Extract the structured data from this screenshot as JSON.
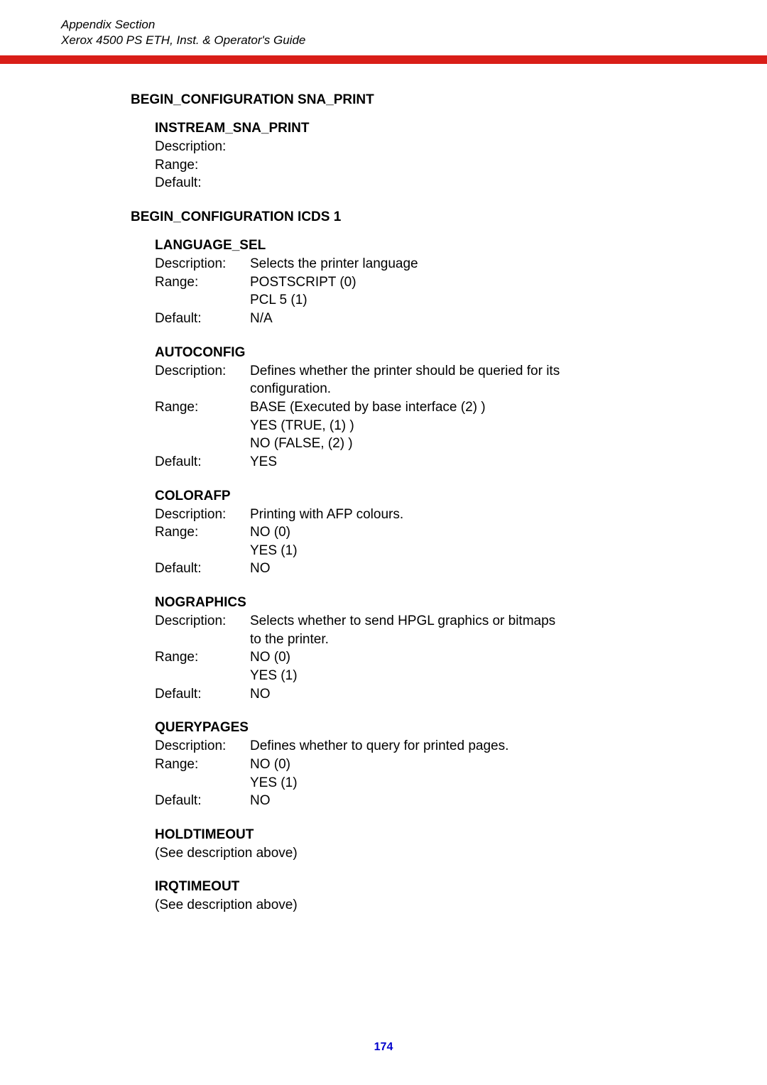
{
  "header": {
    "line1": "Appendix Section",
    "line2": "Xerox 4500 PS ETH, Inst. & Operator's Guide"
  },
  "sections": [
    {
      "title": "BEGIN_CONFIGURATION SNA_PRINT",
      "params": [
        {
          "name": "INSTREAM_SNA_PRINT",
          "rows": [
            {
              "label": "Description:",
              "value": ""
            },
            {
              "label": "Range:",
              "value": ""
            },
            {
              "label": "Default:",
              "value": ""
            }
          ]
        }
      ]
    },
    {
      "title": "BEGIN_CONFIGURATION ICDS 1",
      "params": [
        {
          "name": "LANGUAGE_SEL",
          "rows": [
            {
              "label": "Description:",
              "value": "Selects the printer language"
            },
            {
              "label": "Range:",
              "value": "POSTSCRIPT (0)"
            },
            {
              "label": "",
              "value": "PCL 5  (1)"
            },
            {
              "label": "Default:",
              "value": "N/A"
            }
          ]
        },
        {
          "name": "AUTOCONFIG",
          "rows": [
            {
              "label": "Description:",
              "value": "Defines whether the printer should be queried for its"
            },
            {
              "label": "",
              "value": "configuration."
            },
            {
              "label": "Range:",
              "value": "BASE (Executed by base interface  (2)  )"
            },
            {
              "label": "",
              "value": "YES   (TRUE,  (1)  )"
            },
            {
              "label": "",
              "value": "NO    (FALSE, (2)  )"
            },
            {
              "label": "Default:",
              "value": "YES"
            }
          ]
        },
        {
          "name": "COLORAFP",
          "rows": [
            {
              "label": "Description:",
              "value": "Printing with AFP colours."
            },
            {
              "label": "Range:",
              "value": "NO  (0)"
            },
            {
              "label": "",
              "value": "YES (1)"
            },
            {
              "label": "Default:",
              "value": "NO"
            }
          ]
        },
        {
          "name": "NOGRAPHICS",
          "rows": [
            {
              "label": "Description:",
              "value": "Selects whether to send HPGL graphics or bitmaps"
            },
            {
              "label": "",
              "value": "to the printer."
            },
            {
              "label": "Range:",
              "value": "NO  (0)"
            },
            {
              "label": "",
              "value": "YES (1)"
            },
            {
              "label": "Default:",
              "value": "NO"
            }
          ]
        },
        {
          "name": "QUERYPAGES",
          "rows": [
            {
              "label": "Description:",
              "value": "Defines whether to query for printed pages."
            },
            {
              "label": "Range:",
              "value": "NO  (0)"
            },
            {
              "label": "",
              "value": "YES (1)"
            },
            {
              "label": "Default:",
              "value": "NO"
            }
          ]
        },
        {
          "name": "HOLDTIMEOUT",
          "note": "(See description above)"
        },
        {
          "name": "IRQTIMEOUT",
          "note": "(See description above)"
        }
      ]
    }
  ],
  "page_number": "174",
  "colors": {
    "red_bar": "#d91e18",
    "page_number": "#0000cc",
    "text": "#000000",
    "background": "#ffffff"
  }
}
